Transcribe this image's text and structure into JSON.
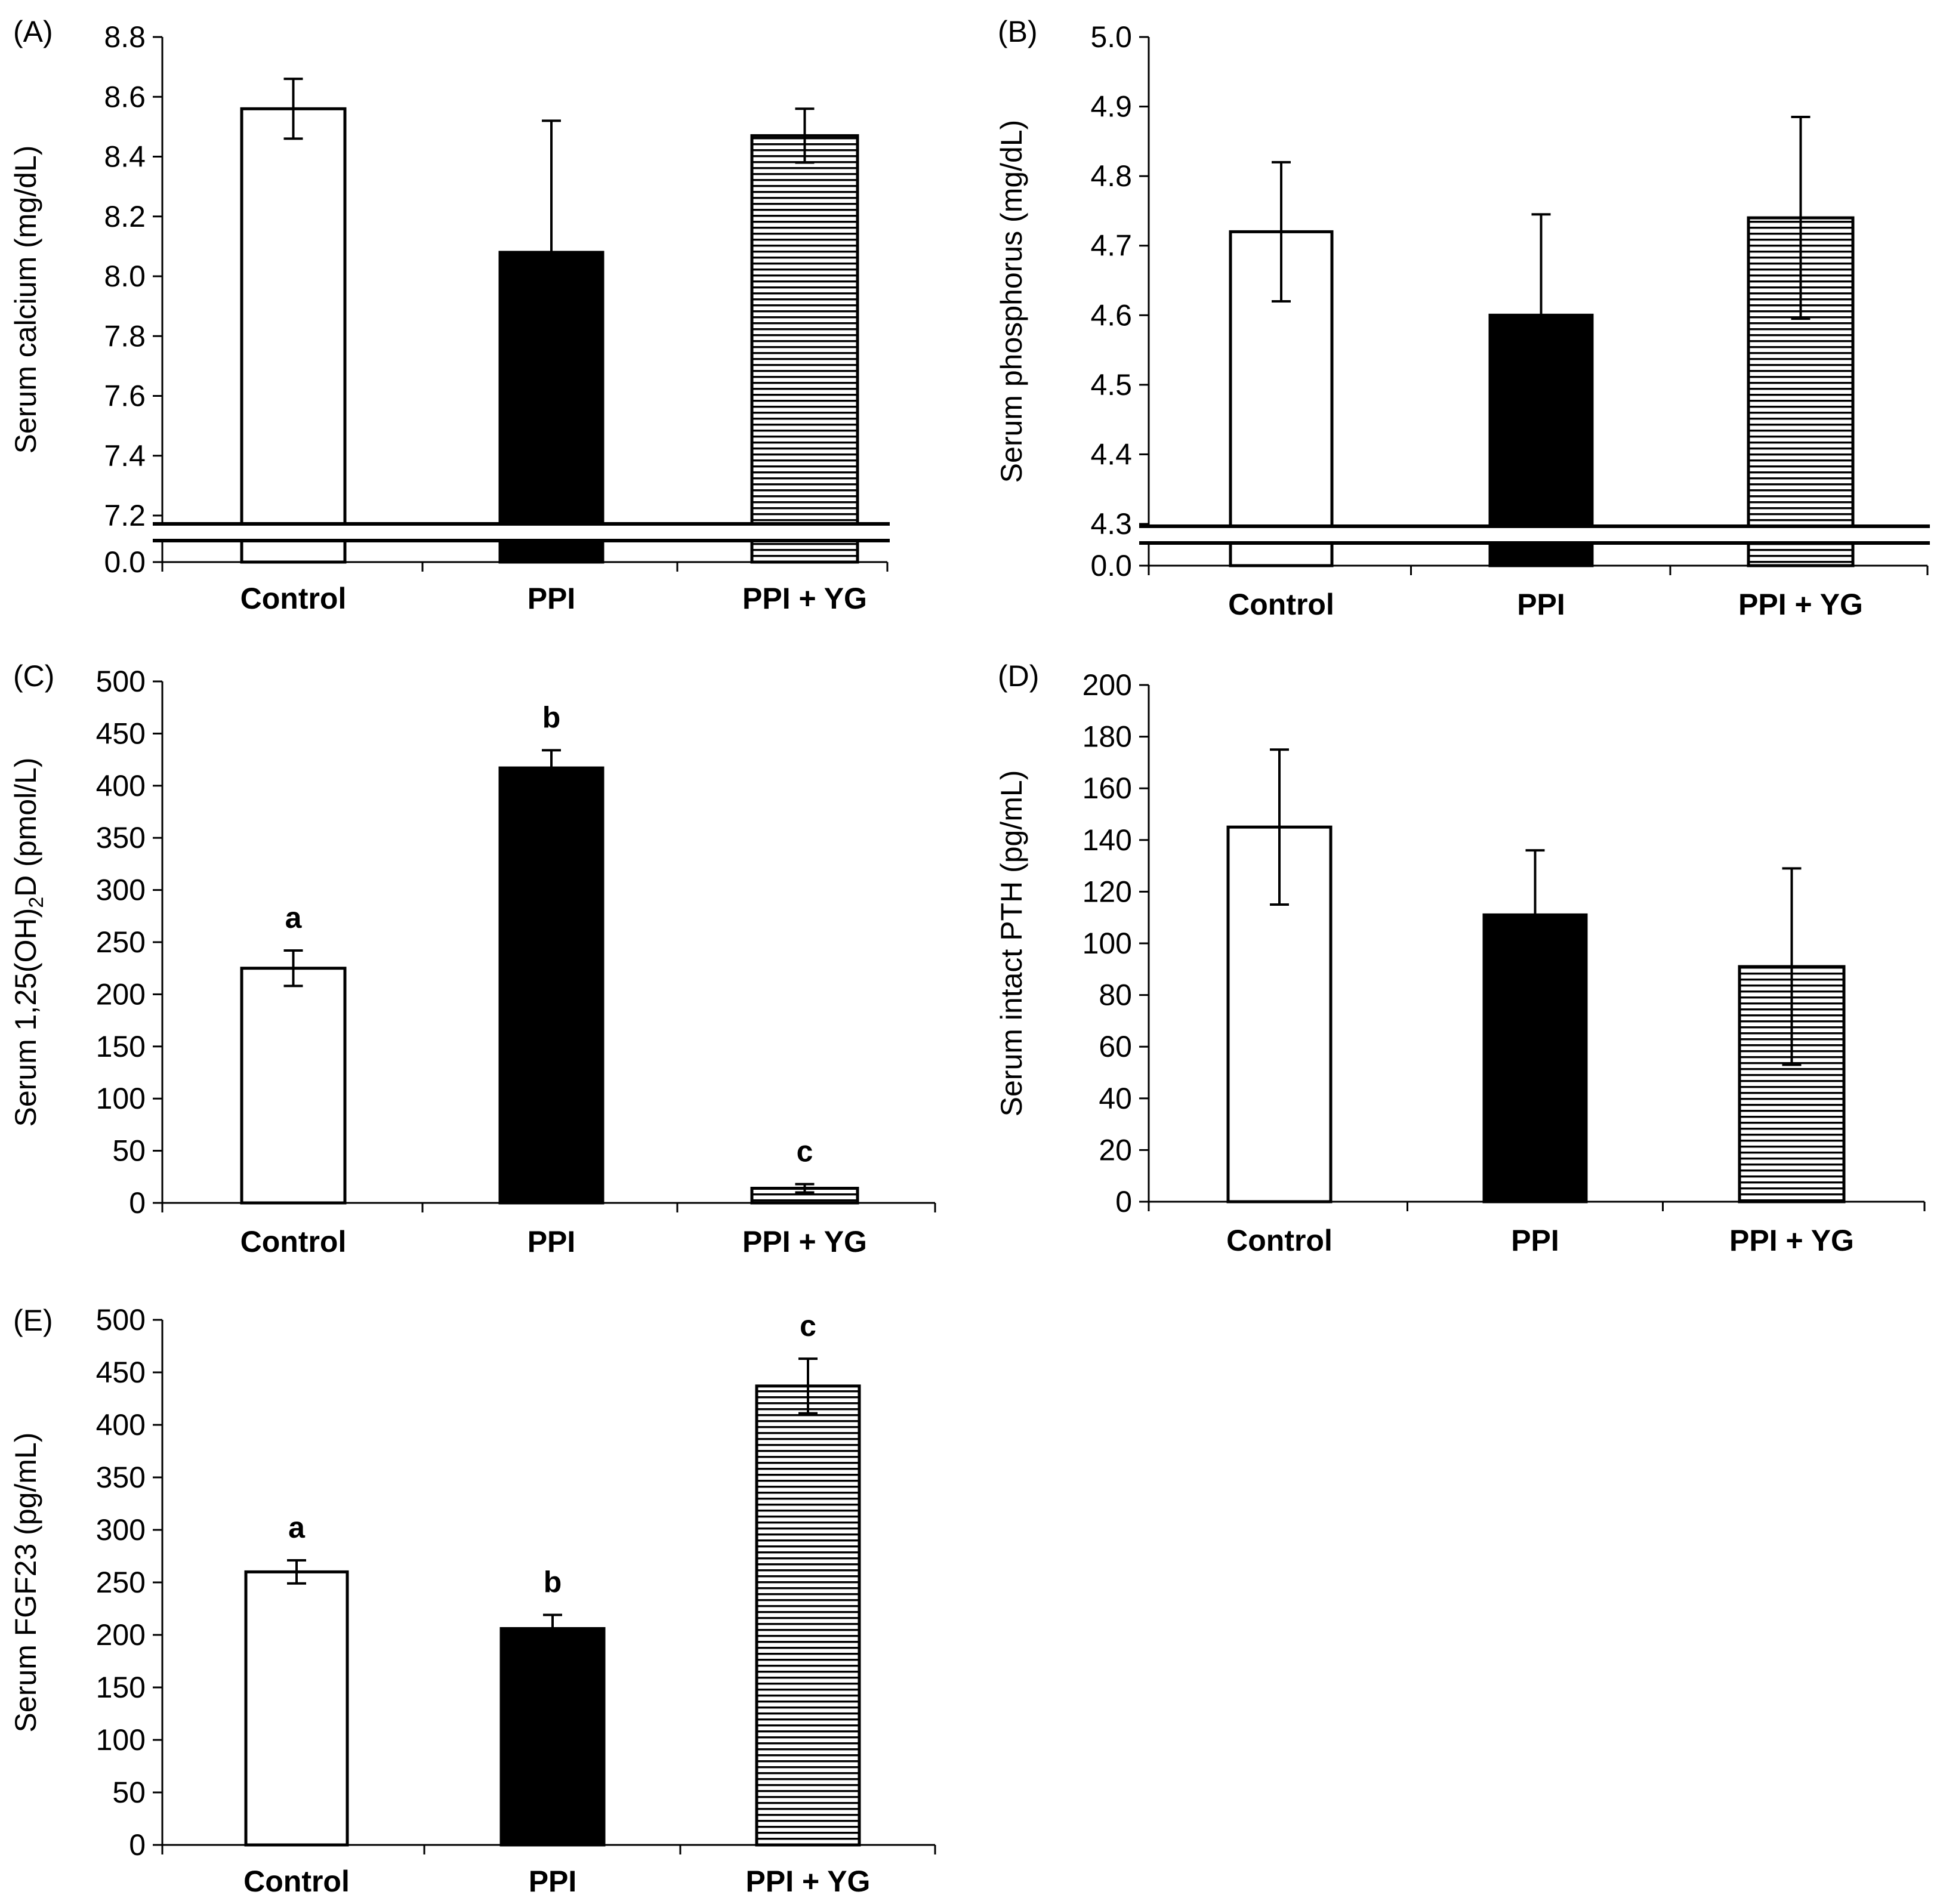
{
  "colors": {
    "ink": "#000000",
    "paper": "#ffffff"
  },
  "chart_data": [
    {
      "id": "A",
      "panel_label": "(A)",
      "type": "bar",
      "ylabel": "Serum calcium (mg/dL)",
      "categories": [
        "Control",
        "PPI",
        "PPI + YG"
      ],
      "fills": [
        "white",
        "black",
        "hatched"
      ],
      "values": [
        8.56,
        8.08,
        8.47
      ],
      "errors": [
        0.1,
        0.44,
        0.09
      ],
      "sig_letters": [],
      "axis_break": true,
      "ylim": [
        7.2,
        8.8
      ],
      "tick_step": 0.2,
      "ticks": [
        "0.0",
        "7.2",
        "7.4",
        "7.6",
        "7.8",
        "8.0",
        "8.2",
        "8.4",
        "8.6",
        "8.8"
      ],
      "grid": false
    },
    {
      "id": "B",
      "panel_label": "(B)",
      "type": "bar",
      "ylabel": "Serum phosphorus (mg/dL)",
      "categories": [
        "Control",
        "PPI",
        "PPI + YG"
      ],
      "fills": [
        "white",
        "black",
        "hatched"
      ],
      "values": [
        4.72,
        4.6,
        4.74
      ],
      "errors": [
        0.1,
        0.145,
        0.145
      ],
      "sig_letters": [],
      "axis_break": true,
      "ylim": [
        4.3,
        5.0
      ],
      "tick_step": 0.1,
      "ticks": [
        "0.0",
        "4.3",
        "4.4",
        "4.5",
        "4.6",
        "4.7",
        "4.8",
        "4.9",
        "5.0"
      ],
      "grid": false
    },
    {
      "id": "C",
      "panel_label": "(C)",
      "type": "bar",
      "ylabel": "Serum 1,25(OH)2D (pmol/L)",
      "ylabel_parts": [
        "Serum 1,25(OH)",
        "2",
        "D (pmol/L)"
      ],
      "categories": [
        "Control",
        "PPI",
        "PPI + YG"
      ],
      "fills": [
        "white",
        "black",
        "hatched"
      ],
      "values": [
        225,
        417,
        14
      ],
      "errors": [
        17,
        17,
        4
      ],
      "sig_letters": [
        "a",
        "b",
        "c"
      ],
      "axis_break": false,
      "ylim": [
        0,
        500
      ],
      "tick_step": 50,
      "ticks": [
        "0",
        "50",
        "100",
        "150",
        "200",
        "250",
        "300",
        "350",
        "400",
        "450",
        "500"
      ],
      "grid": false
    },
    {
      "id": "D",
      "panel_label": "(D)",
      "type": "bar",
      "ylabel": "Serum intact PTH (pg/mL)",
      "categories": [
        "Control",
        "PPI",
        "PPI + YG"
      ],
      "fills": [
        "white",
        "black",
        "hatched"
      ],
      "values": [
        145,
        111,
        91
      ],
      "errors": [
        30,
        25,
        38
      ],
      "sig_letters": [],
      "axis_break": false,
      "ylim": [
        0,
        200
      ],
      "tick_step": 20,
      "ticks": [
        "0",
        "20",
        "40",
        "60",
        "80",
        "100",
        "120",
        "140",
        "160",
        "180",
        "200"
      ],
      "grid": false
    },
    {
      "id": "E",
      "panel_label": "(E)",
      "type": "bar",
      "ylabel": "Serum FGF23 (pg/mL)",
      "categories": [
        "Control",
        "PPI",
        "PPI + YG"
      ],
      "fills": [
        "white",
        "black",
        "hatched"
      ],
      "values": [
        260,
        206,
        437
      ],
      "errors": [
        11,
        13,
        26
      ],
      "sig_letters": [
        "a",
        "b",
        "c"
      ],
      "axis_break": false,
      "ylim": [
        0,
        500
      ],
      "tick_step": 50,
      "ticks": [
        "0",
        "50",
        "100",
        "150",
        "200",
        "250",
        "300",
        "350",
        "400",
        "450",
        "500"
      ],
      "grid": false
    }
  ]
}
